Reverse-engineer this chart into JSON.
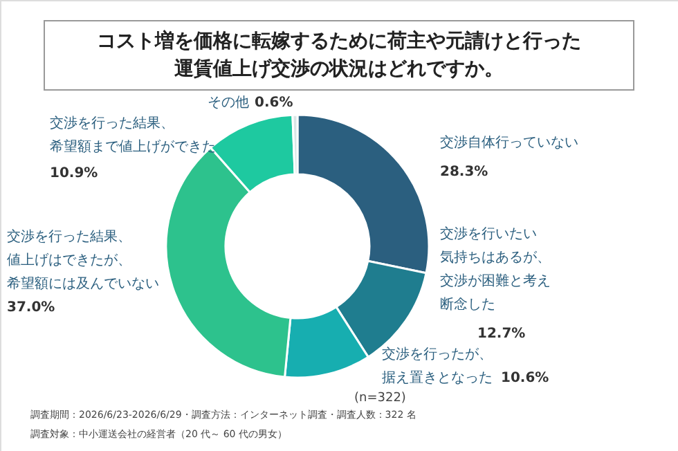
{
  "chart_data": {
    "type": "donut",
    "title": "コスト増を価格に転嫁するために荷主や元請けと行った運賃値上げ交渉の状況はどれですか。",
    "categories": [
      "交渉自体行っていない",
      "交渉を行いたい気持ちはあるが、交渉が困難と考え断念した",
      "交渉を行ったが、据え置きとなった",
      "交渉を行った結果、値上げはできたが、希望額には及んでいない",
      "交渉を行った結果、希望額まで値上げができた",
      "その他"
    ],
    "values": [
      28.3,
      12.7,
      10.6,
      37.0,
      10.9,
      0.6
    ],
    "value_labels": [
      "28.3%",
      "12.7%",
      "10.6%",
      "37.0%",
      "10.9%",
      "0.6%"
    ],
    "colors": [
      "#2b5f7f",
      "#1f7d8f",
      "#17aeb0",
      "#2dc28d",
      "#1ec9a0",
      "#d9e6e6"
    ],
    "annotations": [
      "(n=322)",
      "調査期間：2026/6/23-2026/6/29・調査方法：インターネット調査・調査人数：322 名",
      "調査対象：中小運送会社の経営者（20 代～ 60 代の男女）"
    ]
  }
}
